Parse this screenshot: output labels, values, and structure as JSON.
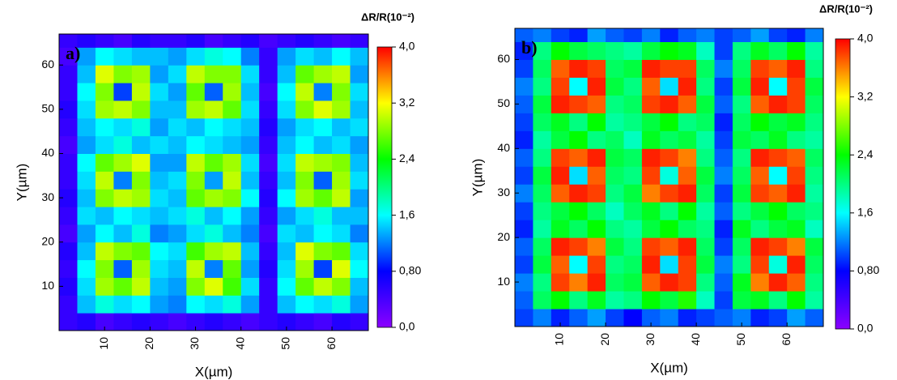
{
  "chart_data": [
    {
      "type": "heatmap",
      "title": "a)",
      "xlabel": "X(µm)",
      "ylabel": "Y(µm)",
      "colorbar_title": "ΔR/R(10⁻²)",
      "x": [
        2,
        6,
        10,
        14,
        18,
        22,
        26,
        30,
        34,
        38,
        42,
        46,
        50,
        54,
        58,
        62,
        66
      ],
      "y": [
        2,
        6,
        10,
        14,
        18,
        22,
        26,
        30,
        34,
        38,
        42,
        46,
        50,
        54,
        58,
        62,
        66
      ],
      "xlim": [
        0,
        68
      ],
      "ylim": [
        0,
        67
      ],
      "xticks": [
        10,
        20,
        30,
        40,
        50,
        60
      ],
      "yticks": [
        10,
        20,
        30,
        40,
        50,
        60
      ],
      "zlim": [
        0,
        4
      ],
      "zticks": [
        {
          "value": 0,
          "label": "0,0"
        },
        {
          "value": 0.8,
          "label": "0,80"
        },
        {
          "value": 1.6,
          "label": "1,6"
        },
        {
          "value": 2.4,
          "label": "2,4"
        },
        {
          "value": 3.2,
          "label": "3,2"
        },
        {
          "value": 4,
          "label": "4,0"
        }
      ],
      "colorscale": [
        "#8b00ff",
        "#0000ff",
        "#00ffff",
        "#00ff00",
        "#ffff00",
        "#ff0000"
      ],
      "z": [
        [
          0.5,
          0.6,
          0.4,
          0.5,
          0.6,
          0.5,
          0.4,
          0.5,
          0.6,
          0.5,
          0.4,
          0.5,
          0.6,
          0.5,
          0.4,
          0.6,
          0.5
        ],
        [
          0.5,
          1.4,
          1.7,
          1.5,
          1.6,
          1.3,
          1.2,
          1.6,
          1.5,
          1.7,
          1.3,
          0.5,
          1.4,
          1.6,
          1.5,
          1.7,
          1.3
        ],
        [
          0.6,
          1.5,
          2.9,
          2.7,
          3.0,
          1.4,
          1.3,
          2.8,
          3.1,
          2.6,
          1.5,
          0.5,
          1.6,
          2.7,
          3.0,
          2.8,
          1.4
        ],
        [
          0.5,
          1.6,
          2.8,
          1.1,
          2.9,
          1.5,
          1.4,
          3.0,
          1.2,
          2.7,
          1.3,
          0.6,
          1.5,
          2.9,
          1.0,
          3.1,
          1.6
        ],
        [
          0.6,
          1.4,
          3.0,
          2.8,
          2.7,
          1.6,
          1.5,
          2.6,
          2.9,
          3.0,
          1.4,
          0.5,
          1.4,
          3.1,
          2.8,
          2.7,
          1.5
        ],
        [
          0.4,
          1.3,
          1.6,
          1.4,
          1.7,
          1.2,
          1.3,
          1.5,
          1.7,
          1.4,
          1.2,
          0.4,
          1.5,
          1.4,
          1.6,
          1.5,
          1.2
        ],
        [
          0.5,
          1.5,
          1.4,
          1.6,
          1.5,
          1.4,
          1.5,
          1.7,
          1.4,
          1.6,
          1.3,
          0.5,
          1.3,
          1.5,
          1.7,
          1.4,
          1.4
        ],
        [
          0.6,
          1.4,
          2.8,
          3.0,
          2.9,
          1.5,
          1.4,
          2.7,
          2.9,
          2.8,
          1.6,
          0.6,
          1.6,
          2.9,
          2.7,
          3.0,
          1.3
        ],
        [
          0.5,
          1.5,
          3.0,
          1.2,
          2.8,
          1.4,
          1.5,
          2.8,
          1.3,
          3.0,
          1.4,
          0.5,
          1.4,
          2.8,
          1.1,
          2.9,
          1.5
        ],
        [
          0.5,
          1.6,
          2.7,
          2.9,
          3.1,
          1.3,
          1.3,
          3.0,
          2.7,
          2.9,
          1.5,
          0.4,
          1.5,
          3.0,
          2.9,
          2.8,
          1.4
        ],
        [
          0.4,
          1.3,
          1.5,
          1.7,
          1.4,
          1.5,
          1.4,
          1.6,
          1.5,
          1.4,
          1.3,
          0.5,
          1.4,
          1.6,
          1.4,
          1.5,
          1.3
        ],
        [
          0.5,
          1.4,
          1.6,
          1.5,
          1.7,
          1.3,
          1.5,
          1.4,
          1.6,
          1.5,
          1.4,
          0.6,
          1.3,
          1.5,
          1.6,
          1.4,
          1.5
        ],
        [
          0.6,
          1.5,
          2.9,
          3.0,
          2.8,
          1.4,
          1.4,
          2.9,
          3.0,
          2.7,
          1.5,
          0.5,
          1.5,
          2.8,
          3.1,
          2.9,
          1.4
        ],
        [
          0.5,
          1.6,
          2.8,
          1.0,
          3.0,
          1.5,
          1.3,
          2.7,
          1.1,
          2.9,
          1.4,
          0.4,
          1.6,
          3.0,
          1.2,
          2.8,
          1.5
        ],
        [
          0.5,
          1.4,
          3.1,
          2.8,
          2.9,
          1.3,
          1.5,
          3.0,
          2.8,
          2.8,
          1.5,
          0.5,
          1.4,
          2.7,
          2.9,
          3.0,
          1.3
        ],
        [
          0.4,
          1.3,
          1.6,
          1.5,
          1.4,
          1.4,
          1.3,
          1.5,
          1.7,
          1.6,
          1.2,
          0.5,
          1.3,
          1.5,
          1.4,
          1.6,
          1.4
        ],
        [
          0.5,
          0.6,
          0.5,
          0.4,
          0.6,
          0.5,
          0.5,
          0.6,
          0.4,
          0.5,
          0.6,
          0.4,
          0.5,
          0.6,
          0.5,
          0.4,
          0.5
        ]
      ]
    },
    {
      "type": "heatmap",
      "title": "b)",
      "xlabel": "X(µm)",
      "ylabel": "Y(µm)",
      "colorbar_title": "ΔR/R(10⁻²)",
      "x": [
        2,
        6,
        10,
        14,
        18,
        22,
        26,
        30,
        34,
        38,
        42,
        46,
        50,
        54,
        58,
        62,
        66
      ],
      "y": [
        2,
        6,
        10,
        14,
        18,
        22,
        26,
        30,
        34,
        38,
        42,
        46,
        50,
        54,
        58,
        62,
        66
      ],
      "xlim": [
        0,
        68
      ],
      "ylim": [
        0,
        67
      ],
      "xticks": [
        10,
        20,
        30,
        40,
        50,
        60
      ],
      "yticks": [
        10,
        20,
        30,
        40,
        50,
        60
      ],
      "zlim": [
        0,
        4
      ],
      "zticks": [
        {
          "value": 0,
          "label": "0,0"
        },
        {
          "value": 0.8,
          "label": "0,80"
        },
        {
          "value": 1.6,
          "label": "1,6"
        },
        {
          "value": 2.4,
          "label": "2,4"
        },
        {
          "value": 3.2,
          "label": "3,2"
        },
        {
          "value": 4,
          "label": "4,0"
        }
      ],
      "colorscale": [
        "#8b00ff",
        "#0000ff",
        "#00ffff",
        "#00ff00",
        "#ffff00",
        "#ff0000"
      ],
      "z": [
        [
          1.0,
          1.2,
          0.9,
          1.1,
          1.3,
          1.0,
          0.8,
          1.1,
          1.2,
          0.9,
          1.0,
          1.1,
          1.2,
          0.9,
          1.0,
          1.3,
          1.1
        ],
        [
          1.1,
          2.1,
          2.4,
          2.0,
          2.3,
          1.9,
          2.0,
          2.4,
          2.2,
          2.5,
          1.8,
          1.0,
          2.2,
          2.3,
          2.0,
          2.4,
          1.9
        ],
        [
          1.2,
          2.0,
          3.8,
          3.6,
          3.9,
          2.1,
          2.2,
          3.7,
          3.9,
          3.8,
          2.0,
          1.1,
          2.3,
          3.6,
          3.9,
          3.7,
          2.0
        ],
        [
          1.0,
          2.2,
          3.7,
          1.6,
          3.8,
          2.0,
          2.1,
          3.9,
          1.5,
          3.8,
          2.2,
          1.2,
          2.0,
          3.8,
          1.7,
          3.9,
          2.1
        ],
        [
          1.1,
          2.1,
          3.9,
          3.8,
          3.6,
          2.2,
          2.0,
          3.8,
          3.7,
          3.9,
          2.1,
          1.0,
          2.1,
          3.9,
          3.8,
          3.6,
          2.2
        ],
        [
          0.9,
          1.9,
          2.3,
          2.1,
          2.4,
          2.0,
          1.9,
          2.2,
          2.4,
          2.1,
          2.0,
          0.9,
          2.3,
          2.0,
          2.2,
          2.3,
          1.8
        ],
        [
          1.0,
          2.0,
          2.2,
          2.4,
          2.1,
          1.8,
          2.1,
          2.3,
          2.0,
          2.4,
          1.9,
          1.1,
          2.0,
          2.2,
          2.4,
          2.1,
          2.0
        ],
        [
          1.2,
          2.1,
          3.7,
          3.9,
          3.8,
          2.0,
          2.2,
          3.6,
          3.8,
          3.9,
          2.1,
          1.0,
          2.2,
          3.8,
          3.7,
          3.9,
          1.9
        ],
        [
          1.0,
          2.2,
          3.9,
          1.5,
          3.7,
          2.1,
          2.0,
          3.8,
          1.7,
          3.7,
          2.2,
          1.2,
          2.1,
          3.7,
          1.6,
          3.8,
          2.0
        ],
        [
          1.1,
          2.0,
          3.8,
          3.7,
          3.9,
          2.2,
          2.1,
          3.9,
          3.8,
          3.6,
          2.0,
          1.1,
          2.0,
          3.9,
          3.8,
          3.7,
          2.1
        ],
        [
          0.9,
          1.9,
          2.2,
          2.4,
          2.0,
          2.1,
          1.8,
          2.3,
          2.1,
          2.2,
          1.9,
          1.0,
          2.2,
          2.1,
          2.3,
          2.0,
          1.9
        ],
        [
          1.0,
          2.1,
          2.3,
          2.0,
          2.4,
          1.9,
          2.0,
          2.2,
          2.4,
          2.0,
          2.1,
          0.9,
          2.1,
          2.4,
          2.2,
          2.3,
          2.0
        ],
        [
          1.1,
          2.2,
          3.9,
          3.8,
          3.7,
          2.0,
          2.1,
          3.8,
          3.9,
          3.7,
          2.2,
          1.1,
          2.0,
          3.7,
          3.9,
          3.8,
          2.1
        ],
        [
          1.2,
          2.0,
          3.8,
          1.6,
          3.9,
          2.2,
          2.0,
          3.7,
          1.5,
          3.9,
          2.0,
          1.0,
          2.2,
          3.9,
          1.6,
          3.8,
          2.2
        ],
        [
          1.0,
          2.1,
          3.7,
          3.9,
          3.8,
          2.1,
          2.2,
          3.9,
          3.8,
          3.8,
          2.1,
          1.2,
          2.1,
          3.8,
          3.7,
          3.9,
          2.0
        ],
        [
          0.9,
          2.0,
          2.4,
          2.2,
          2.1,
          2.0,
          1.9,
          2.2,
          2.4,
          2.3,
          1.8,
          1.0,
          2.0,
          2.3,
          2.1,
          2.4,
          1.9
        ],
        [
          1.1,
          1.2,
          1.0,
          0.9,
          1.3,
          1.1,
          1.0,
          1.2,
          0.9,
          1.1,
          1.2,
          1.0,
          1.1,
          1.3,
          1.0,
          0.9,
          1.2
        ]
      ]
    }
  ]
}
